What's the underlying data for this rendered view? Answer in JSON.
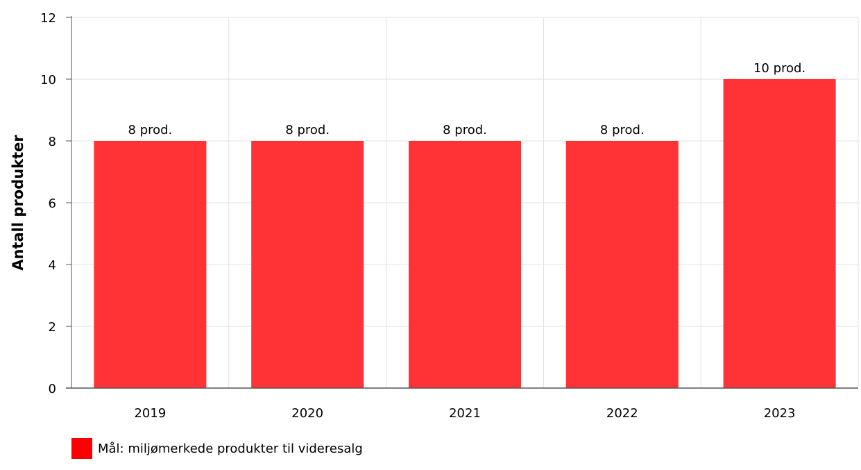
{
  "chart_data": {
    "type": "bar",
    "categories": [
      "2019",
      "2020",
      "2021",
      "2022",
      "2023"
    ],
    "values": [
      8,
      8,
      8,
      8,
      10
    ],
    "data_labels": [
      "8 prod.",
      "8 prod.",
      "8 prod.",
      "8 prod.",
      "10 prod."
    ],
    "series": [
      {
        "name": "Mål: miljømerkede produkter til videresalg",
        "values": [
          8,
          8,
          8,
          8,
          10
        ]
      }
    ],
    "title": "",
    "xlabel": "",
    "ylabel": "Antall produkter",
    "ylim": [
      0,
      12
    ],
    "yticks": [
      "0",
      "2",
      "4",
      "6",
      "8",
      "10",
      "12"
    ],
    "grid": true,
    "legend_position": "bottom-left",
    "colors": {
      "bar": "#ff3336",
      "legend_swatch": "#ff0000",
      "grid": "#e0e0e0",
      "axis": "#555555"
    }
  }
}
